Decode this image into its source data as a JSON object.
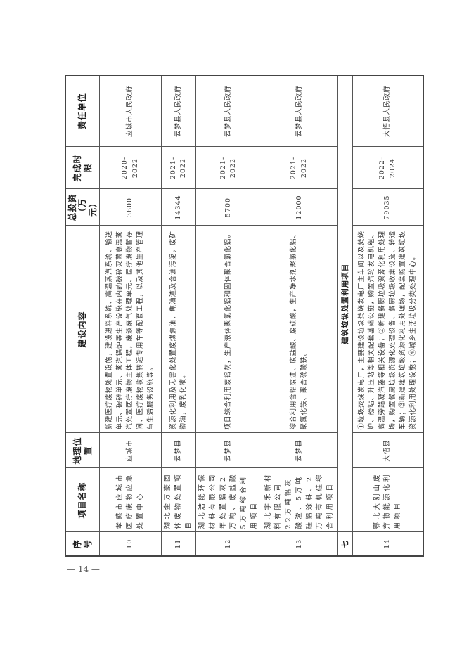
{
  "table": {
    "headers": [
      "序号",
      "项目名称",
      "地理位置",
      "建设内容",
      "总投资（万元）",
      "完成时限",
      "责任单位"
    ],
    "rows": [
      {
        "no": "10",
        "name": "孝感市应城市医疗废物应急处置中心",
        "location": "应城市",
        "content": "新建医疗废物处置设施，建设进料系统、高温蒸汽系统、输送单元、破碎单元、蒸汽锅炉等生产设施在内的破碎灭菌高温蒸汽处置医疗废物主体工程，废液废气处理单元、医疗废物暂存间、医疗废物收集转运专用车等配套工程，以及其他生产管理与生活服务设施等。",
        "investment": "3800",
        "period": "2020-2022",
        "unit": "应城市人民政府"
      },
      {
        "no": "11",
        "name": "湖北金万豪固体废物处置项目",
        "location": "云梦县",
        "content": "资源化利用及无害化处置废煤焦油、焦油渣及含油污泥，废矿物油，废乳化液。",
        "investment": "14344",
        "period": "2021-2022",
        "unit": "云梦县人民政府"
      },
      {
        "no": "12",
        "name": "湖北洁能环保材料有限公司年处置铝灰2万吨、废盐酸5万吨综合利用项目",
        "location": "云梦县",
        "content": "项目综合利用废铝灰，生产液体聚氯化铝和固体聚合氯化铝。",
        "investment": "5700",
        "period": "2021-2022",
        "unit": "云梦县人民政府"
      },
      {
        "section": "七",
        "title": "建筑垃圾处置利用项目"
      },
      {
        "no": "14",
        "name": "鄂北大别山废弃物能源化利用项目",
        "location": "大悟县",
        "content": "①垃圾焚烧发电厂，主要建设垃圾焚烧发电厂主车间以及焚烧炉、磅站、升压站等相关配套基础设施，购置汽轮发电机组、高温旁路凝汽器等相关设备；②新建餐厨垃圾资源化利用处理场，购置餐厨垃圾资源化处理设备、餐厨垃圾收集设施、转运车辆；③新建建筑垃圾资源化利用处理场，配套购置建筑垃圾资源化利用处理设施；④城乡生活垃圾分类处理中心。",
        "investment": "79035",
        "period": "2022-2024",
        "unit": "大悟县人民政府"
      }
    ],
    "row13": {
      "no": "13",
      "name": "湖北宇禾新材料有限公司22万吨铝灰酸渣、5万吨硅铝涂料、2万吨有机硅综合利用项目",
      "location": "云梦县",
      "content": "综合利用含铝废渣、废盐酸、废硫酸，生产净水剂聚氯化铝、聚氯化铁、聚合硫酸铁。",
      "investment": "12000",
      "period": "2021-2022",
      "unit": "云梦县人民政府"
    }
  },
  "page_number": "— 14 —"
}
